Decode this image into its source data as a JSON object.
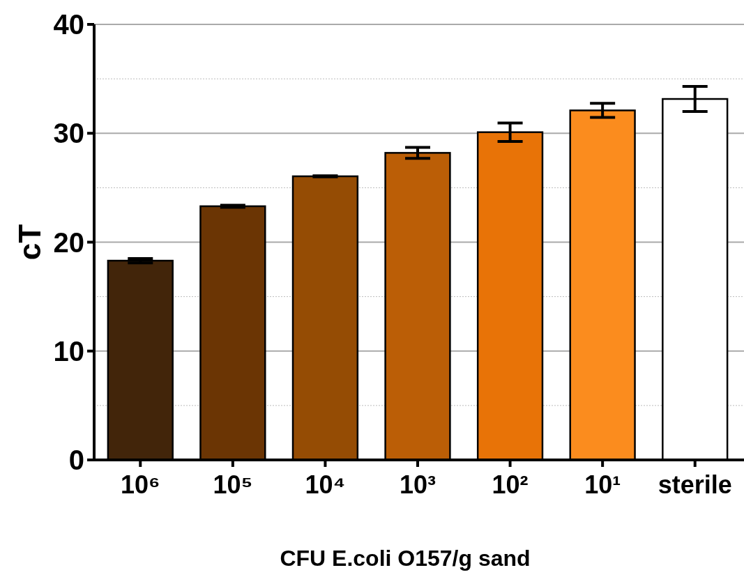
{
  "chart_data": {
    "type": "bar",
    "xlabel": "CFU E.coli O157/g sand",
    "ylabel": "cT",
    "categories": [
      "10⁶",
      "10⁵",
      "10⁴",
      "10³",
      "10²",
      "10¹",
      "sterile"
    ],
    "values": [
      18.3,
      23.3,
      26.05,
      28.2,
      30.1,
      32.1,
      33.15
    ],
    "errors": [
      0.2,
      0.1,
      0.05,
      0.5,
      0.85,
      0.65,
      1.15
    ],
    "colors": [
      "#42250a",
      "#6b3504",
      "#954c04",
      "#bb5e06",
      "#e87307",
      "#fb8c1e",
      "#ffffff"
    ],
    "ylim": [
      0,
      40
    ],
    "yticks": [
      0,
      {
        "value": 5,
        "label": null
      },
      10,
      {
        "value": 15,
        "label": null
      },
      20,
      {
        "value": 25,
        "label": null
      },
      30,
      {
        "value": 35,
        "label": null
      },
      40
    ],
    "grid": "y"
  }
}
